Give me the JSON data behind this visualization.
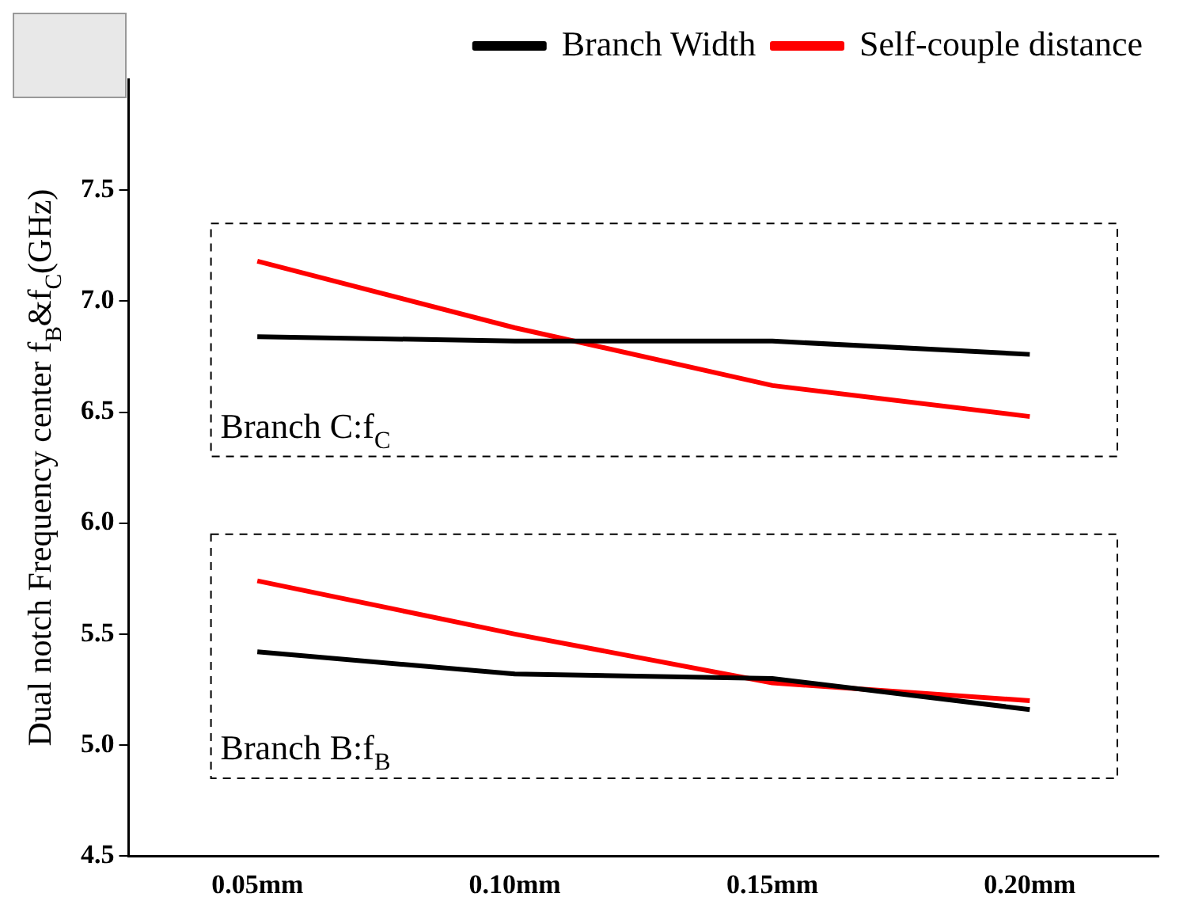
{
  "chart_data": {
    "type": "line",
    "ylabel": "Dual notch Frequency center f$_{B}$&f$_{C}$(GHz)",
    "categories": [
      "0.05mm",
      "0.10mm",
      "0.15mm",
      "0.20mm"
    ],
    "series": [
      {
        "name": "Branch Width",
        "color": "#000000",
        "values": [
          6.84,
          6.82,
          6.82,
          6.76
        ]
      },
      {
        "name": "Self-couple distance",
        "color": "#ff0000",
        "values": [
          7.18,
          6.88,
          6.62,
          6.48
        ]
      },
      {
        "color": "#000000",
        "values": [
          5.42,
          5.32,
          5.3,
          5.16
        ]
      },
      {
        "color": "#ff0000",
        "values": [
          5.74,
          5.5,
          5.28,
          5.2
        ]
      }
    ],
    "ylim": [
      4.5,
      8.0
    ],
    "yticks": [
      4.5,
      {
        "value": 5,
        "label": "5.0"
      },
      5.5,
      {
        "value": 6,
        "label": "6.0"
      },
      6.5,
      {
        "value": 7,
        "label": "7.0"
      },
      7.5
    ],
    "grid": false,
    "legend": "top right",
    "marker": "none",
    "line_style": "solid",
    "annotations": [
      "Branch C:f$_{C}$",
      "Branch B:f$_{B}$"
    ]
  }
}
